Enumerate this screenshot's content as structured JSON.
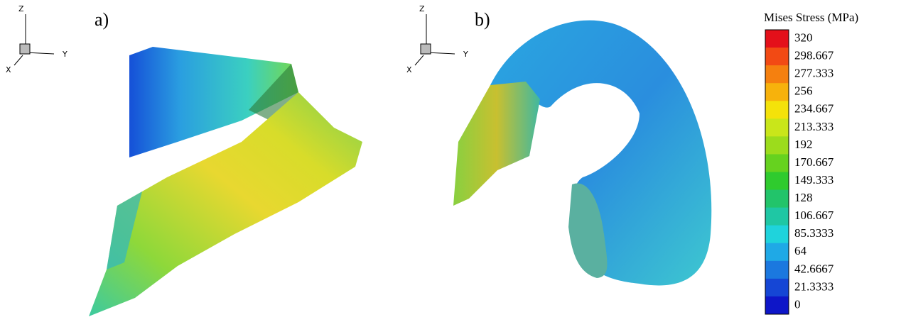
{
  "panels": [
    {
      "label": "a)",
      "axes": {
        "z": "Z",
        "y": "Y",
        "x": "X"
      }
    },
    {
      "label": "b)",
      "axes": {
        "z": "Z",
        "y": "Y",
        "x": "X"
      }
    }
  ],
  "legend": {
    "title": "Mises Stress (MPa)",
    "levels": [
      320,
      298.667,
      277.333,
      256,
      234.667,
      213.333,
      192,
      170.667,
      149.333,
      128,
      106.667,
      85.3333,
      64,
      42.6667,
      21.3333,
      0
    ],
    "colors": [
      "#e4101a",
      "#f24a14",
      "#f5800f",
      "#f7b20c",
      "#f4e20a",
      "#c9e61a",
      "#9cdc1c",
      "#66d21f",
      "#2fcb2e",
      "#22c46a",
      "#1fc7a4",
      "#1fd3dc",
      "#1fa9e6",
      "#1b78df",
      "#1546d5",
      "#0e16c8"
    ]
  }
}
